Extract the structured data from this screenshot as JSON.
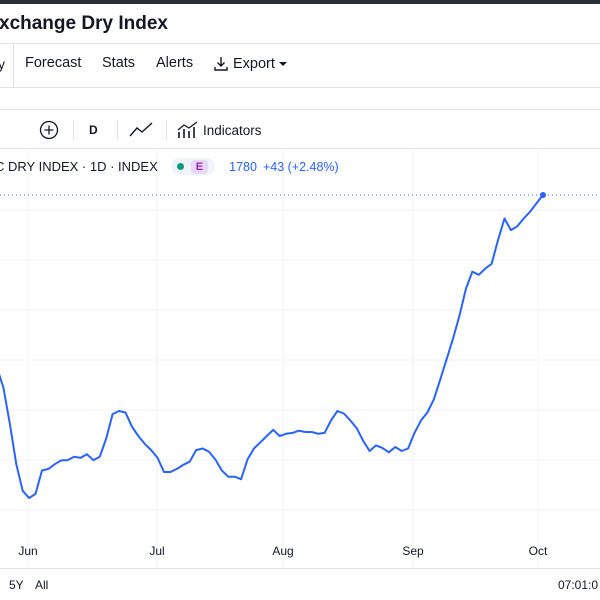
{
  "window": {
    "title": "xchange Dry Index"
  },
  "tabs": {
    "clipped": "y",
    "forecast": "Forecast",
    "stats": "Stats",
    "alerts": "Alerts",
    "export": "Export"
  },
  "toolbar": {
    "interval": "D",
    "indicators": "Indicators",
    "icons": [
      "compare-plus-icon",
      "line-chart-icon",
      "indicators-icon"
    ]
  },
  "legend": {
    "symbol": "C DRY INDEX · 1D · INDEX",
    "market_status": "E",
    "price": "1780",
    "change": "+43 (+2.48%)"
  },
  "colors": {
    "line": "#2962ff",
    "market_open": "#089981",
    "tag_bg": "#e9d7f7",
    "tag_fg": "#9c27b0"
  },
  "chart_data": {
    "type": "line",
    "title": "",
    "xlabel": "",
    "ylabel": "",
    "x_ticks": [
      "Jun",
      "Jul",
      "Aug",
      "Sep",
      "Oct"
    ],
    "series": [
      {
        "values": [
          1228,
          1165,
          1050,
          920,
          835,
          812,
          825,
          900,
          905,
          920,
          932,
          933,
          944,
          940,
          952,
          933,
          944,
          1002,
          1080,
          1090,
          1085,
          1040,
          1010,
          985,
          965,
          940,
          895,
          895,
          905,
          918,
          928,
          965,
          970,
          960,
          935,
          900,
          880,
          880,
          872,
          935,
          970,
          990,
          1010,
          1030,
          1010,
          1017,
          1020,
          1027,
          1023,
          1023,
          1017,
          1020,
          1060,
          1090,
          1082,
          1060,
          1035,
          995,
          962,
          980,
          972,
          958,
          975,
          962,
          970,
          1020,
          1060,
          1085,
          1127,
          1190,
          1255,
          1322,
          1395,
          1480,
          1535,
          1525,
          1545,
          1560,
          1636,
          1705,
          1668,
          1680,
          1705,
          1727,
          1754,
          1780
        ]
      }
    ],
    "last_value": 1780,
    "grid": true
  },
  "bottom": {
    "ranges": [
      "5Y",
      "All"
    ],
    "time": "07:01:0"
  }
}
